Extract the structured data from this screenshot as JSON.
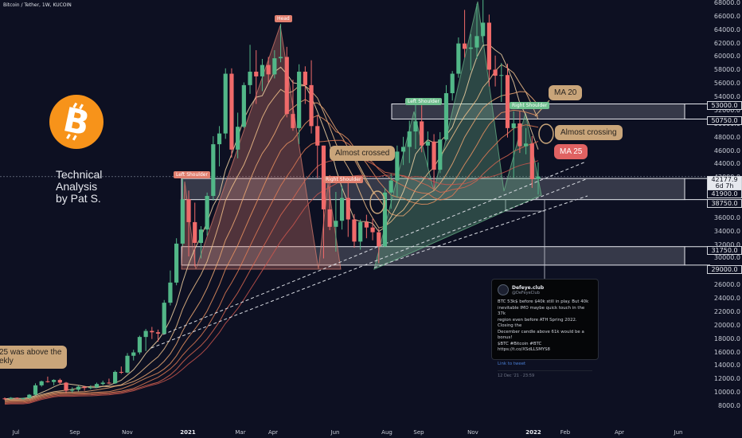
{
  "header": {
    "symbol_line": "Bitcoin / Tether, 1W, KUCOIN"
  },
  "branding": {
    "logo_icon": "bitcoin-logo-icon",
    "logo_color": "#f7931a",
    "title_lines": [
      "Technical",
      "Analysis",
      "by Pat S."
    ]
  },
  "annotations": {
    "head": "Head",
    "left_shoulder_1": "Left Shoulder",
    "right_shoulder_1": "Right Shoulder",
    "left_shoulder_2": "Left Shoulder",
    "right_shoulder_2": "Right Shoulder",
    "almost_crossed": "Almost crossed",
    "almost_crossing": "Almost crossing",
    "ma20": "MA 20",
    "ma25": "MA 25",
    "cut_note_line1": "25 was above the",
    "cut_note_line2": "ekly"
  },
  "colors": {
    "up": "#52b788",
    "down": "#f06a6a",
    "bubble": "#c9a57a",
    "ma25_bubble": "#e06262",
    "zone": "#c8cbd6",
    "background": "#0d1022"
  },
  "tweet": {
    "name": "Defeye.club",
    "handle": "@DeFeyeClub",
    "text": "BTC 53k$ before $40k still in play. But 40k\ninevitable IMO maybe quick touch in the 37k\nregion even before ATH Spring 2022. Closing the\nDecember candle above 61k would be a bonus!\n$BTC #Bitcoin #BTC https://t.co/XSdLLSMYS8",
    "link": "Link to tweet",
    "date": "12 Dec '21 · 23:59"
  },
  "price_axis": {
    "ticks": [
      "68000.0",
      "66000.0",
      "64000.0",
      "62000.0",
      "60000.0",
      "58000.0",
      "56000.0",
      "54000.0",
      "52000.0",
      "50000.0",
      "48000.0",
      "46000.0",
      "44000.0",
      "42000.0",
      "40000.0",
      "38000.0",
      "36000.0",
      "34000.0",
      "32000.0",
      "30000.0",
      "28000.0",
      "26000.0",
      "24000.0",
      "22000.0",
      "20000.0",
      "18000.0",
      "16000.0",
      "14000.0",
      "12000.0",
      "10000.0",
      "8000.0"
    ],
    "boxes": {
      "b53000": "53000.0",
      "b50750": "50750.0",
      "current": "42177.9",
      "countdown": "6d 7h",
      "b41900": "41900.0",
      "b38750": "38750.0",
      "b31750": "31750.0",
      "b29000": "29000.0"
    }
  },
  "time_axis": {
    "ticks": [
      "Jul",
      "Sep",
      "Nov",
      "2021",
      "Mar",
      "Apr",
      "Jun",
      "Aug",
      "Sep",
      "Nov",
      "2022",
      "Feb",
      "Apr",
      "Jun"
    ]
  },
  "chart_data": {
    "type": "candlestick",
    "symbol": "Bitcoin / Tether",
    "interval": "1W",
    "exchange": "KUCOIN",
    "ylim": [
      7500,
      69000
    ],
    "x_ticks": [
      "Jul",
      "Sep",
      "Nov",
      "2021",
      "Mar",
      "Apr",
      "Jun",
      "Aug",
      "Sep",
      "Nov",
      "2022",
      "Feb",
      "Apr",
      "Jun"
    ],
    "candles_ohlc": [
      [
        9150,
        9300,
        8900,
        9100
      ],
      [
        9100,
        9350,
        9000,
        9250
      ],
      [
        9250,
        9300,
        9050,
        9150
      ],
      [
        9150,
        9250,
        9000,
        9200
      ],
      [
        9200,
        9800,
        9150,
        9700
      ],
      [
        9700,
        11400,
        9600,
        11100
      ],
      [
        11100,
        11800,
        10900,
        11700
      ],
      [
        11700,
        12400,
        11500,
        11600
      ],
      [
        11600,
        12000,
        11100,
        11900
      ],
      [
        11900,
        12100,
        11200,
        11500
      ],
      [
        11500,
        11600,
        9900,
        10300
      ],
      [
        10300,
        10800,
        10000,
        10450
      ],
      [
        10450,
        11100,
        10200,
        10900
      ],
      [
        10900,
        11000,
        10300,
        10700
      ],
      [
        10700,
        11100,
        10500,
        10800
      ],
      [
        10800,
        11500,
        10700,
        11300
      ],
      [
        11300,
        11800,
        11100,
        11500
      ],
      [
        11500,
        12100,
        11300,
        11400
      ],
      [
        11400,
        13300,
        11300,
        13100
      ],
      [
        13100,
        13900,
        12800,
        13000
      ],
      [
        13000,
        15900,
        12900,
        15500
      ],
      [
        15500,
        16400,
        14800,
        16000
      ],
      [
        16000,
        18500,
        15700,
        18300
      ],
      [
        18300,
        19500,
        16200,
        19200
      ],
      [
        19200,
        19800,
        18000,
        19000
      ],
      [
        19000,
        19400,
        17600,
        18800
      ],
      [
        18800,
        23800,
        18700,
        23400
      ],
      [
        23400,
        28200,
        23000,
        26400
      ],
      [
        26400,
        33000,
        26000,
        32200
      ],
      [
        32200,
        41900,
        31800,
        38800
      ],
      [
        38800,
        40100,
        30300,
        35400
      ],
      [
        35400,
        38300,
        28800,
        32300
      ],
      [
        32300,
        34800,
        30000,
        34300
      ],
      [
        34300,
        39800,
        33400,
        39300
      ],
      [
        39300,
        48200,
        38600,
        47000
      ],
      [
        47000,
        49700,
        43700,
        48600
      ],
      [
        48600,
        58300,
        47800,
        57500
      ],
      [
        57500,
        58300,
        45000,
        46200
      ],
      [
        46200,
        51700,
        44900,
        49600
      ],
      [
        49600,
        56200,
        49400,
        55800
      ],
      [
        55800,
        61800,
        54500,
        57800
      ],
      [
        57800,
        61000,
        53000,
        57100
      ],
      [
        57100,
        59700,
        54900,
        58800
      ],
      [
        58800,
        60000,
        56200,
        57400
      ],
      [
        57400,
        61000,
        56800,
        59800
      ],
      [
        59800,
        64900,
        59200,
        60000
      ],
      [
        60000,
        61500,
        51000,
        51500
      ],
      [
        51500,
        56600,
        49000,
        49400
      ],
      [
        49400,
        58900,
        47000,
        57800
      ],
      [
        57800,
        58600,
        53000,
        55800
      ],
      [
        55800,
        59500,
        48600,
        49700
      ],
      [
        49700,
        51400,
        42000,
        46800
      ],
      [
        46800,
        46800,
        30000,
        37300
      ],
      [
        37300,
        42400,
        34200,
        34700
      ],
      [
        34700,
        39900,
        31000,
        35600
      ],
      [
        35600,
        40800,
        34300,
        39000
      ],
      [
        39000,
        41300,
        33200,
        35800
      ],
      [
        35800,
        36600,
        31600,
        32500
      ],
      [
        32500,
        35800,
        31300,
        35400
      ],
      [
        35400,
        36500,
        33000,
        34600
      ],
      [
        34600,
        35900,
        32700,
        33900
      ],
      [
        33900,
        34400,
        29300,
        31800
      ],
      [
        31800,
        40500,
        31700,
        39800
      ],
      [
        39800,
        42600,
        37400,
        41600
      ],
      [
        41600,
        46800,
        39100,
        45900
      ],
      [
        45900,
        48100,
        43900,
        46600
      ],
      [
        46600,
        50500,
        44200,
        48900
      ],
      [
        48900,
        52900,
        46300,
        50400
      ],
      [
        50400,
        52800,
        45800,
        46800
      ],
      [
        46800,
        48900,
        43600,
        47400
      ],
      [
        47400,
        48500,
        40400,
        43200
      ],
      [
        43200,
        48800,
        42700,
        47700
      ],
      [
        47700,
        55800,
        47500,
        54600
      ],
      [
        54600,
        57900,
        53500,
        57500
      ],
      [
        57500,
        62900,
        56900,
        62000
      ],
      [
        62000,
        67000,
        59900,
        61200
      ],
      [
        61200,
        63400,
        58000,
        61400
      ],
      [
        61400,
        67900,
        59700,
        63100
      ],
      [
        63100,
        69000,
        62200,
        65100
      ],
      [
        65100,
        66300,
        55600,
        58100
      ],
      [
        58100,
        60200,
        55600,
        57200
      ],
      [
        57200,
        59100,
        53300,
        57300
      ],
      [
        57300,
        59000,
        48000,
        49400
      ],
      [
        49400,
        51900,
        42000,
        50100
      ],
      [
        50100,
        51900,
        45700,
        46700
      ],
      [
        46700,
        49400,
        45500,
        47100
      ],
      [
        47100,
        48200,
        40500,
        41800
      ],
      [
        41800,
        44300,
        39500,
        42200
      ]
    ],
    "moving_averages": [
      "MA 20",
      "MA 25"
    ],
    "zones": [
      {
        "from": 50750,
        "to": 53000
      },
      {
        "from": 38750,
        "to": 41900
      },
      {
        "from": 29000,
        "to": 31750
      }
    ],
    "patterns": [
      "Left Shoulder",
      "Head",
      "Right Shoulder",
      "Left Shoulder",
      "Right Shoulder"
    ],
    "last_price": 42177.9
  }
}
